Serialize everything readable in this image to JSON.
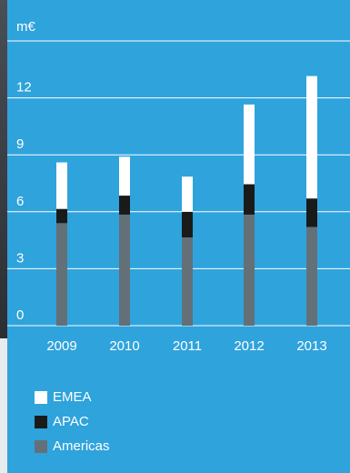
{
  "chart_data": {
    "type": "stacked_bar",
    "y_label": "m€",
    "categories": [
      "2009",
      "2010",
      "2011",
      "2012",
      "2013"
    ],
    "series": [
      {
        "name": "Americas",
        "color": "#647078",
        "values": [
          5.4,
          5.85,
          4.65,
          5.85,
          5.2
        ]
      },
      {
        "name": "APAC",
        "color": "#1a1a1a",
        "values": [
          0.75,
          1.0,
          1.35,
          1.6,
          1.5
        ]
      },
      {
        "name": "EMEA",
        "color": "#ffffff",
        "values": [
          2.45,
          2.05,
          1.85,
          4.2,
          6.45
        ]
      }
    ],
    "ylim": [
      0,
      15
    ],
    "yticks": [
      0,
      3,
      6,
      9,
      12
    ],
    "grid": true
  }
}
